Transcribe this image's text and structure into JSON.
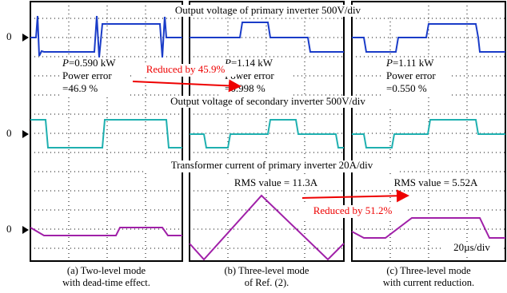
{
  "row_titles": [
    "Output voltage of primary inverter 500V/div",
    "Output voltage of secondary inverter 500V/div",
    "Transformer current of primary inverter 20A/div"
  ],
  "zero_label": "0",
  "panels": [
    {
      "power_symbol": "P",
      "power_value": "=0.590 kW",
      "error_label": "Power error",
      "error_value": "=46.9 %",
      "caption": [
        "(a) Two-level mode",
        "with dead-time effect."
      ]
    },
    {
      "power_symbol": "P",
      "power_value": "=1.14 kW",
      "error_label": "Power error",
      "error_value": "=0.998 %",
      "rms": "RMS value = 11.3A",
      "caption": [
        "(b) Three-level mode",
        "of Ref. (2)."
      ]
    },
    {
      "power_symbol": "P",
      "power_value": "=1.11 kW",
      "error_label": "Power error",
      "error_value": "=0.550 %",
      "rms": "RMS value = 5.52A",
      "time_scale": "20µs/div",
      "caption": [
        "(c) Three-level mode",
        "with current reduction."
      ]
    }
  ],
  "annotations": [
    "Reduced by 45.9%",
    "Reduced by 51.2%"
  ]
}
